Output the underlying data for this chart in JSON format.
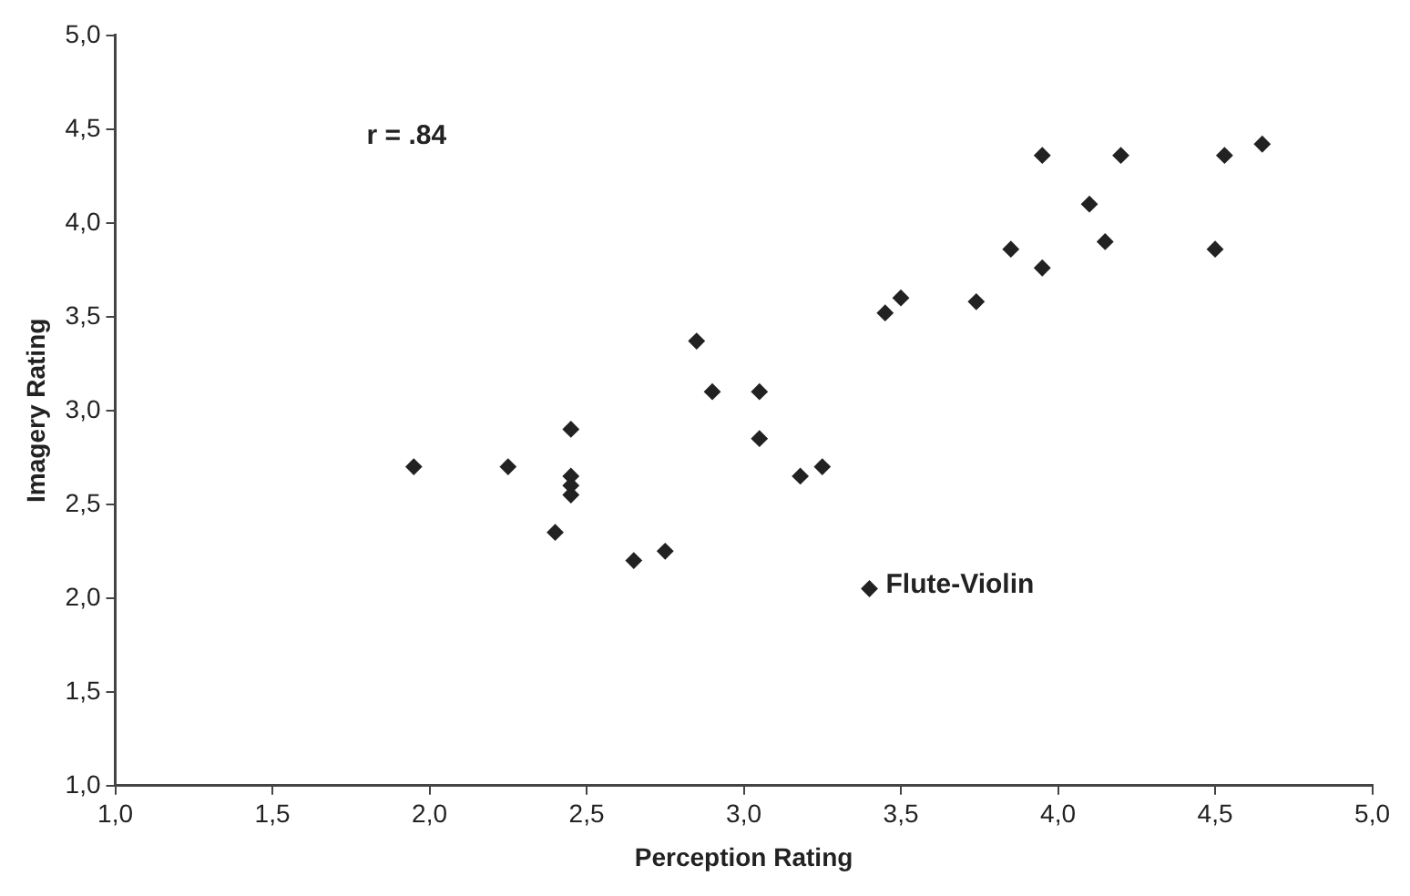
{
  "chart_data": {
    "type": "scatter",
    "xlabel": "Perception Rating",
    "ylabel": "Imagery Rating",
    "xlim": [
      1.0,
      5.0
    ],
    "ylim": [
      1.0,
      5.0
    ],
    "xticks": [
      {
        "value": 1.0,
        "label": "1,0"
      },
      {
        "value": 1.5,
        "label": "1,5"
      },
      {
        "value": 2.0,
        "label": "2,0"
      },
      {
        "value": 2.5,
        "label": "2,5"
      },
      {
        "value": 3.0,
        "label": "3,0"
      },
      {
        "value": 3.5,
        "label": "3,5"
      },
      {
        "value": 4.0,
        "label": "4,0"
      },
      {
        "value": 4.5,
        "label": "4,5"
      },
      {
        "value": 5.0,
        "label": "5,0"
      }
    ],
    "yticks": [
      {
        "value": 1.0,
        "label": "1,0"
      },
      {
        "value": 1.5,
        "label": "1,5"
      },
      {
        "value": 2.0,
        "label": "2,0"
      },
      {
        "value": 2.5,
        "label": "2,5"
      },
      {
        "value": 3.0,
        "label": "3,0"
      },
      {
        "value": 3.5,
        "label": "3,5"
      },
      {
        "value": 4.0,
        "label": "4,0"
      },
      {
        "value": 4.5,
        "label": "4,5"
      },
      {
        "value": 5.0,
        "label": "5,0"
      }
    ],
    "grid": false,
    "legend": false,
    "marker": "diamond",
    "series": [
      {
        "color": "#222222",
        "x": [
          1.95,
          2.25,
          2.45,
          2.45,
          2.45,
          2.45,
          2.4,
          2.65,
          2.75,
          2.85,
          2.9,
          3.05,
          3.05,
          3.18,
          3.25,
          3.4,
          3.45,
          3.5,
          3.74,
          3.85,
          3.95,
          3.95,
          4.1,
          4.15,
          4.2,
          4.5,
          4.53,
          4.65
        ],
        "values": [
          2.7,
          2.7,
          2.9,
          2.65,
          2.6,
          2.55,
          2.35,
          2.2,
          2.25,
          3.37,
          3.1,
          3.1,
          2.85,
          2.65,
          2.7,
          2.05,
          3.52,
          3.6,
          3.58,
          3.86,
          3.76,
          4.36,
          4.1,
          3.9,
          4.36,
          3.86,
          4.36,
          4.42
        ]
      }
    ],
    "annotations": [
      "r = .84",
      {
        "text": "Flute-Violin",
        "x": 3.4,
        "y": 2.05
      }
    ]
  }
}
